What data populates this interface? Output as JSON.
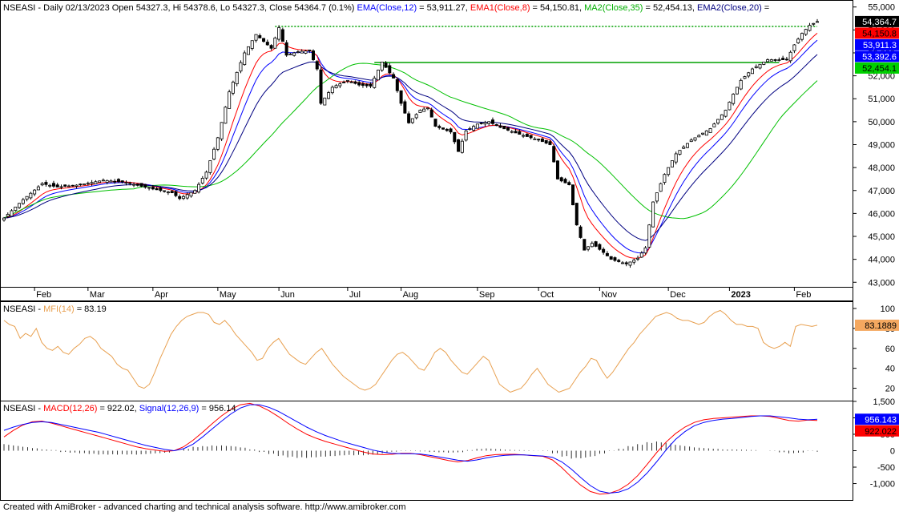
{
  "chart_data": [
    {
      "type": "candlestick",
      "panel": "price",
      "header": {
        "symbol": "NSEASI",
        "info": " - Daily 02/13/2023 Open 54327.3, Hi 54378.6, Lo 54327.3, Close 54364.7 (0.1%)",
        "ema_label": "EMA(Close,12)",
        "ema_value": " = 53,911.27,",
        "ema1_label": "EMA1(Close,8)",
        "ema1_value": " = 54,150.81,",
        "ma2_label": "MA2(Close,35)",
        "ma2_value": " = 52,454.13,",
        "ema2_label": "EMA2(Close,20)",
        "ema2_value": " ="
      },
      "x_labels": [
        "Feb",
        "Mar",
        "Apr",
        "May",
        "Jun",
        "Jul",
        "Aug",
        "Sep",
        "Oct",
        "Nov",
        "Dec",
        "2023",
        "Feb"
      ],
      "ylim": [
        42800,
        55200
      ],
      "y_ticks": [
        43000,
        44000,
        45000,
        46000,
        47000,
        48000,
        49000,
        50000,
        51000,
        52000,
        53000,
        54000,
        55000
      ],
      "y_tick_labels": [
        "43,000",
        "44,000",
        "45,000",
        "46,000",
        "47,000",
        "48,000",
        "49,000",
        "50,000",
        "51,000",
        "52,000",
        "53,000",
        "54,000",
        "55,000"
      ],
      "close_path": [
        [
          0,
          45800
        ],
        [
          5,
          46600
        ],
        [
          10,
          47300
        ],
        [
          14,
          47150
        ],
        [
          20,
          47250
        ],
        [
          26,
          47450
        ],
        [
          32,
          47350
        ],
        [
          38,
          47100
        ],
        [
          44,
          46900
        ],
        [
          46,
          46650
        ],
        [
          50,
          47000
        ],
        [
          53,
          47800
        ],
        [
          56,
          49300
        ],
        [
          59,
          51300
        ],
        [
          63,
          53000
        ],
        [
          66,
          53800
        ],
        [
          70,
          53200
        ],
        [
          72,
          54100
        ],
        [
          74,
          52900
        ],
        [
          77,
          53050
        ],
        [
          80,
          53100
        ],
        [
          82,
          52300
        ],
        [
          83,
          50800
        ],
        [
          86,
          51500
        ],
        [
          90,
          51800
        ],
        [
          93,
          51600
        ],
        [
          96,
          51550
        ],
        [
          99,
          52600
        ],
        [
          102,
          51900
        ],
        [
          104,
          50800
        ],
        [
          106,
          49950
        ],
        [
          109,
          50500
        ],
        [
          111,
          50600
        ],
        [
          113,
          49800
        ],
        [
          117,
          49550
        ],
        [
          119,
          48700
        ],
        [
          121,
          49600
        ],
        [
          124,
          49900
        ],
        [
          127,
          50000
        ],
        [
          130,
          49750
        ],
        [
          135,
          49450
        ],
        [
          140,
          49200
        ],
        [
          143,
          49000
        ],
        [
          145,
          47500
        ],
        [
          148,
          47250
        ],
        [
          150,
          45500
        ],
        [
          152,
          44400
        ],
        [
          154,
          44700
        ],
        [
          157,
          44300
        ],
        [
          159,
          44000
        ],
        [
          163,
          43800
        ],
        [
          166,
          44050
        ],
        [
          168,
          44500
        ],
        [
          170,
          46500
        ],
        [
          173,
          47700
        ],
        [
          176,
          48600
        ],
        [
          180,
          49200
        ],
        [
          185,
          49700
        ],
        [
          189,
          50500
        ],
        [
          191,
          51200
        ],
        [
          193,
          51800
        ],
        [
          196,
          52300
        ],
        [
          200,
          52700
        ],
        [
          205,
          52700
        ],
        [
          207,
          53350
        ],
        [
          209,
          53850
        ],
        [
          211,
          54200
        ],
        [
          213,
          54365
        ]
      ],
      "lines": [
        {
          "name": "EMA(Close,12)",
          "color": "#0000ff",
          "last": 53911.27
        },
        {
          "name": "EMA1(Close,8)",
          "color": "#ff0000",
          "last": 54150.81
        },
        {
          "name": "MA2(Close,35)",
          "color": "#00c000",
          "last": 52454.13
        },
        {
          "name": "EMA2(Close,20)",
          "color": "#000080"
        }
      ],
      "hlines": [
        {
          "y": 54150,
          "from_bar": 71,
          "to_bar": 213,
          "color": "#00a000",
          "style": "dotted"
        },
        {
          "y": 52580,
          "from_bar": 97,
          "to_bar": 203,
          "color": "#00a000",
          "style": "solid"
        }
      ],
      "value_tags": [
        {
          "text": "54,364.7",
          "bg": "#000000",
          "fg": "#ffffff",
          "y": 54364.7
        },
        {
          "text": "54,150.8",
          "bg": "#ff0000",
          "fg": "#000000",
          "y": 54150.8
        },
        {
          "text": "53,911.3",
          "bg": "#0000ff",
          "fg": "#ffffff",
          "y": 53911.3
        },
        {
          "text": "53,392.6",
          "bg": "#0000ff",
          "fg": "#ffffff",
          "y": 53392.6
        },
        {
          "text": "52,454.1",
          "bg": "#00d000",
          "fg": "#000000",
          "y": 52454.1
        }
      ]
    },
    {
      "type": "line",
      "panel": "mfi",
      "header": {
        "symbol": "NSEASI",
        "indicator_label": "MFI(14)",
        "indicator_value": " = 83.19"
      },
      "color": "#e8a050",
      "ylim": [
        10,
        104
      ],
      "y_ticks": [
        20,
        40,
        60,
        80,
        100
      ],
      "y_tick_labels": [
        "20",
        "40",
        "60",
        "80",
        "100"
      ],
      "values": [
        88,
        84,
        82,
        70,
        75,
        72,
        80,
        66,
        60,
        58,
        62,
        56,
        54,
        60,
        64,
        70,
        72,
        68,
        60,
        56,
        52,
        44,
        40,
        38,
        30,
        22,
        20,
        24,
        36,
        50,
        62,
        74,
        82,
        88,
        92,
        94,
        96,
        96,
        94,
        86,
        84,
        88,
        82,
        74,
        68,
        62,
        56,
        48,
        50,
        60,
        66,
        70,
        62,
        54,
        50,
        46,
        44,
        50,
        56,
        60,
        52,
        44,
        38,
        32,
        28,
        24,
        20,
        18,
        20,
        24,
        32,
        40,
        48,
        54,
        56,
        52,
        46,
        40,
        38,
        46,
        56,
        60,
        56,
        48,
        42,
        36,
        34,
        40,
        46,
        52,
        48,
        36,
        24,
        20,
        16,
        18,
        20,
        26,
        34,
        40,
        32,
        24,
        20,
        16,
        18,
        20,
        28,
        36,
        42,
        50,
        48,
        38,
        30,
        36,
        44,
        52,
        60,
        66,
        74,
        80,
        86,
        92,
        94,
        96,
        94,
        90,
        88,
        88,
        86,
        84,
        86,
        92,
        96,
        98,
        94,
        88,
        84,
        84,
        82,
        82,
        80,
        66,
        62,
        60,
        62,
        66,
        62,
        82,
        84,
        83,
        82,
        83.19
      ],
      "value_tags": [
        {
          "text": "83.1889",
          "bg": "#f4a860",
          "fg": "#000000",
          "y": 83.19
        }
      ]
    },
    {
      "type": "line",
      "panel": "macd",
      "header": {
        "symbol": "NSEASI",
        "macd_label": "MACD(12,26)",
        "macd_value": " = 922.02,",
        "signal_label": "Signal(12,26,9)",
        "signal_value": " = 956.14"
      },
      "ylim": [
        -1450,
        1450
      ],
      "y_ticks": [
        -1000,
        -500,
        0,
        500,
        1000,
        1500
      ],
      "y_tick_labels": [
        "-1,000",
        "-500",
        "0",
        "500",
        "1,000",
        "1,500"
      ],
      "series": [
        {
          "name": "MACD(12,26)",
          "color": "#ff0000",
          "values": [
            420,
            620,
            780,
            880,
            900,
            840,
            760,
            680,
            600,
            520,
            440,
            360,
            280,
            200,
            120,
            60,
            20,
            -20,
            0,
            120,
            320,
            560,
            820,
            1060,
            1260,
            1400,
            1440,
            1360,
            1220,
            1040,
            840,
            660,
            500,
            380,
            280,
            200,
            120,
            40,
            -40,
            -100,
            -120,
            -110,
            -80,
            -80,
            -120,
            -180,
            -240,
            -300,
            -340,
            -300,
            -220,
            -150,
            -120,
            -110,
            -110,
            -130,
            -150,
            -170,
            -280,
            -520,
            -800,
            -1050,
            -1240,
            -1320,
            -1300,
            -1200,
            -1020,
            -760,
            -420,
            -60,
            260,
            520,
            720,
            860,
            940,
            980,
            1000,
            1020,
            1040,
            1060,
            1060,
            1040,
            980,
            920,
            900,
            930,
            922.02
          ]
        },
        {
          "name": "Signal(12,26,9)",
          "color": "#0000ff",
          "values": [
            620,
            720,
            800,
            860,
            880,
            860,
            800,
            740,
            680,
            620,
            560,
            480,
            400,
            320,
            240,
            160,
            100,
            40,
            0,
            60,
            200,
            420,
            660,
            900,
            1120,
            1300,
            1400,
            1400,
            1320,
            1200,
            1040,
            880,
            720,
            580,
            460,
            360,
            260,
            180,
            100,
            20,
            -40,
            -80,
            -90,
            -90,
            -100,
            -140,
            -190,
            -240,
            -290,
            -320,
            -280,
            -220,
            -170,
            -140,
            -130,
            -130,
            -145,
            -160,
            -200,
            -340,
            -560,
            -820,
            -1060,
            -1230,
            -1290,
            -1260,
            -1160,
            -960,
            -680,
            -340,
            20,
            340,
            580,
            760,
            860,
            920,
            960,
            980,
            1010,
            1040,
            1060,
            1060,
            1030,
            1000,
            960,
            940,
            956.14
          ]
        },
        {
          "name": "Histogram",
          "color": "#000000",
          "values": [
            200,
            160,
            120,
            80,
            40,
            20,
            -40,
            -60,
            -80,
            -100,
            -120,
            -120,
            -120,
            -120,
            -120,
            -100,
            -80,
            -60,
            0,
            60,
            120,
            140,
            160,
            160,
            140,
            100,
            40,
            -40,
            -100,
            -160,
            -200,
            -220,
            -220,
            -200,
            -180,
            -160,
            -140,
            -140,
            -140,
            -120,
            -80,
            -30,
            10,
            10,
            -20,
            -40,
            -50,
            -60,
            -50,
            20,
            60,
            70,
            50,
            30,
            20,
            15,
            -5,
            -10,
            -80,
            -180,
            -240,
            -230,
            -180,
            -90,
            -10,
            60,
            140,
            200,
            260,
            280,
            240,
            180,
            140,
            100,
            80,
            60,
            40,
            40,
            30,
            20,
            0,
            10,
            -50,
            -80,
            -60,
            -10,
            -34
          ]
        }
      ],
      "value_tags": [
        {
          "text": "956.143",
          "bg": "#0000ff",
          "fg": "#ffffff",
          "y": 956.14
        },
        {
          "text": "922.022",
          "bg": "#ff0000",
          "fg": "#000000",
          "y": 922.02
        }
      ]
    }
  ],
  "footer": "Created with AmiBroker - advanced charting and technical analysis software. http://www.amibroker.com"
}
